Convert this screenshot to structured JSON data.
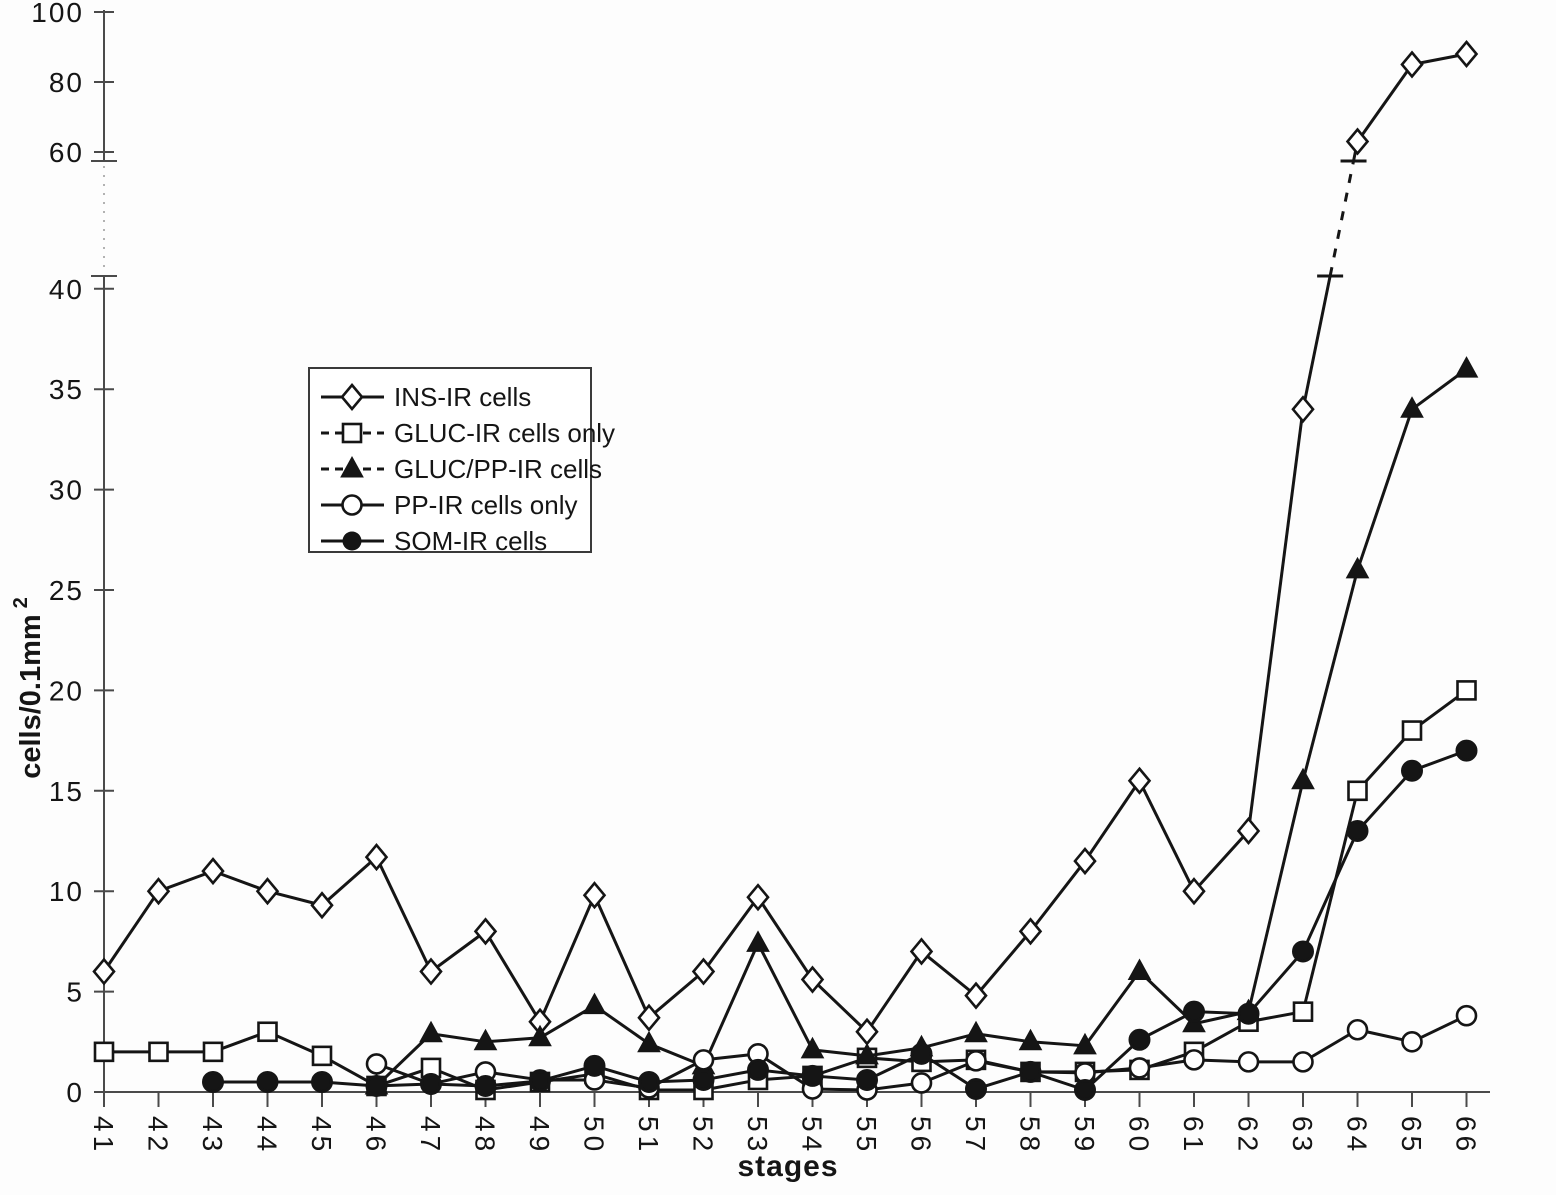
{
  "figure": {
    "background": "#fdfdfd",
    "ink_color": "#151515",
    "axis_color": "#4a4a4a",
    "marker_fill_open": "#ffffff"
  },
  "chart_data": {
    "type": "line",
    "title": "",
    "xlabel": "stages",
    "ylabel": "cells/0.1mm",
    "ylabel_exponent": "2",
    "grid": "off",
    "legend_position": "upper-left-inside",
    "x": [
      41,
      42,
      43,
      44,
      45,
      46,
      47,
      48,
      49,
      50,
      51,
      52,
      53,
      54,
      55,
      56,
      57,
      58,
      59,
      60,
      61,
      62,
      63,
      64,
      65,
      66
    ],
    "x_tick_rotation": 90,
    "y_axis": {
      "bottom_ticks": [
        0,
        5,
        10,
        15,
        20,
        25,
        30,
        35,
        40
      ],
      "top_ticks": [
        60,
        80,
        100
      ],
      "break_between": [
        40,
        60
      ],
      "bottom_range": [
        0,
        41
      ],
      "top_range": [
        57,
        103
      ]
    },
    "series": [
      {
        "id": "ins",
        "name": "INS-IR cells",
        "marker": "diamond-open",
        "legend_line": "solid",
        "break_after_stage": 63,
        "values": [
          6,
          10,
          11,
          10,
          9.3,
          11.7,
          6,
          8,
          3.5,
          9.8,
          3.7,
          6,
          9.7,
          5.6,
          3,
          7,
          4.8,
          8,
          11.5,
          15.5,
          10,
          13,
          34,
          63,
          85,
          88
        ]
      },
      {
        "id": "gluc",
        "name": "GLUC-IR cells only",
        "marker": "square-open",
        "legend_line": "dashed",
        "values": [
          2,
          2,
          2,
          3,
          1.8,
          0.3,
          1.2,
          0.1,
          0.5,
          0.9,
          0.1,
          0.1,
          0.6,
          0.8,
          1.7,
          1.5,
          1.6,
          1,
          1,
          1.1,
          2,
          3.5,
          4,
          15,
          18,
          20
        ]
      },
      {
        "id": "gluc-pp",
        "name": "GLUC/PP-IR cells",
        "marker": "triangle-filled",
        "legend_line": "dashed",
        "values": [
          null,
          null,
          null,
          null,
          null,
          0.3,
          2.9,
          2.5,
          2.7,
          4.3,
          2.4,
          1.3,
          7.4,
          2.1,
          1.8,
          2.2,
          2.9,
          2.5,
          2.3,
          6,
          3.4,
          4,
          15.5,
          26,
          34,
          36
        ]
      },
      {
        "id": "pp",
        "name": "PP-IR cells only",
        "marker": "circle-open",
        "legend_line": "solid",
        "values": [
          null,
          null,
          null,
          null,
          null,
          1.4,
          0.4,
          1,
          0.6,
          0.6,
          0.2,
          1.6,
          1.9,
          0.15,
          0.1,
          0.45,
          1.55,
          1,
          0.95,
          1.2,
          1.6,
          1.5,
          1.5,
          3.1,
          2.5,
          3.8
        ]
      },
      {
        "id": "som",
        "name": "SOM-IR cells",
        "marker": "circle-filled",
        "legend_line": "solid",
        "values": [
          null,
          null,
          0.5,
          0.5,
          0.5,
          0.3,
          0.4,
          0.3,
          0.55,
          1.3,
          0.5,
          0.6,
          1.1,
          0.8,
          0.6,
          1.9,
          0.15,
          1,
          0.1,
          2.6,
          4,
          3.9,
          7,
          13,
          16,
          17
        ]
      }
    ]
  }
}
